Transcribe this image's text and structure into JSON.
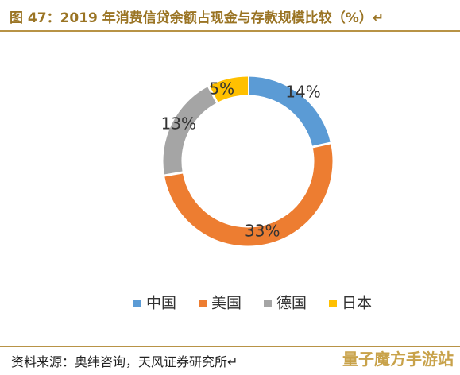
{
  "header": {
    "title": "图 47：2019 年消费信贷余额占现金与存款规模比较（%）↵"
  },
  "colors": {
    "title": "#9a7424",
    "rule": "#b89346",
    "中国": "#5b9bd5",
    "美国": "#ed7d31",
    "德国": "#a5a5a5",
    "日本": "#ffc000"
  },
  "chart_data": {
    "type": "pie",
    "variant": "donut",
    "categories": [
      "中国",
      "美国",
      "德国",
      "日本"
    ],
    "values": [
      14,
      33,
      13,
      5
    ],
    "labels": [
      "14%",
      "33%",
      "13%",
      "5%"
    ],
    "legend": {
      "position": "bottom",
      "entries": [
        "中国",
        "美国",
        "德国",
        "日本"
      ]
    }
  },
  "footer": {
    "source": "资料来源：奥纬咨询，天风证券研究所↵",
    "watermark": "量子魔方手游站"
  }
}
